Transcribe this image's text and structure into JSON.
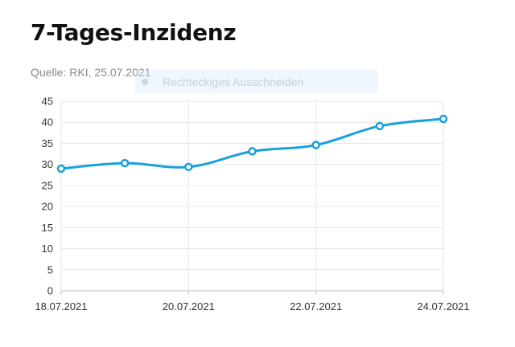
{
  "page": {
    "title": "7-Tages-Inzidenz",
    "source": "Quelle: RKI, 25.07.2021"
  },
  "overlay": {
    "label": "Rechteckiges Ausschneiden",
    "icon": "snip-dot-icon"
  },
  "colors": {
    "line": "#1aa0dc",
    "grid": "#e6e6e6",
    "axis": "#bbbbbb"
  },
  "chart_data": {
    "type": "line",
    "title": "7-Tages-Inzidenz",
    "x": [
      "18.07.2021",
      "19.07.2021",
      "20.07.2021",
      "21.07.2021",
      "22.07.2021",
      "23.07.2021",
      "24.07.2021"
    ],
    "x_tick_labels": [
      "18.07.2021",
      "20.07.2021",
      "22.07.2021",
      "24.07.2021"
    ],
    "series": [
      {
        "values": [
          29.0,
          30.3,
          29.4,
          33.1,
          34.6,
          39.1,
          40.8
        ]
      }
    ],
    "ylim": [
      0,
      45
    ],
    "y_ticks": [
      0,
      5,
      10,
      15,
      20,
      25,
      30,
      35,
      40,
      45
    ],
    "grid": true,
    "legend": "none",
    "xlabel": "",
    "ylabel": ""
  }
}
